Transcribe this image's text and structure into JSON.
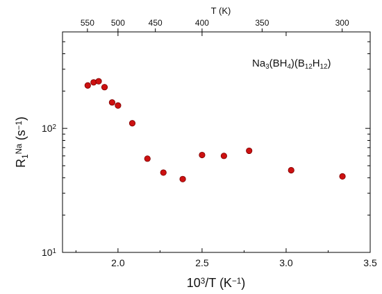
{
  "chart_data": {
    "type": "scatter",
    "title": "",
    "annotation": {
      "parts": [
        {
          "t": "Na",
          "s": ""
        },
        {
          "t": "3",
          "s": "sub"
        },
        {
          "t": "(BH",
          "s": ""
        },
        {
          "t": "4",
          "s": "sub"
        },
        {
          "t": ")(B",
          "s": ""
        },
        {
          "t": "12",
          "s": "sub"
        },
        {
          "t": "H",
          "s": ""
        },
        {
          "t": "12",
          "s": "sub"
        },
        {
          "t": ")",
          "s": ""
        }
      ]
    },
    "xlabel": {
      "parts": [
        {
          "t": "10",
          "s": ""
        },
        {
          "t": "3",
          "s": "sup"
        },
        {
          "t": "/T  (K",
          "s": ""
        },
        {
          "t": "−1",
          "s": "sup"
        },
        {
          "t": ")",
          "s": ""
        }
      ]
    },
    "ylabel": {
      "parts": [
        {
          "t": "R",
          "s": ""
        },
        {
          "t": "1",
          "s": "sub"
        },
        {
          "t": "Na",
          "s": "sup"
        },
        {
          "t": "  (s",
          "s": ""
        },
        {
          "t": "−1",
          "s": "sup"
        },
        {
          "t": ")",
          "s": ""
        }
      ]
    },
    "top_axis_label": "T  (K)",
    "xlim": [
      1.67,
      3.5
    ],
    "ylim": [
      10,
      600
    ],
    "yscale": "log",
    "grid": false,
    "x_ticks": [
      {
        "v": 2.0,
        "label": "2.0"
      },
      {
        "v": 2.5,
        "label": "2.5"
      },
      {
        "v": 3.0,
        "label": "3.0"
      },
      {
        "v": 3.5,
        "label": "3.5"
      }
    ],
    "y_ticks": [
      {
        "v": 10,
        "base": "10",
        "exp": "1"
      },
      {
        "v": 100,
        "base": "10",
        "exp": "2"
      }
    ],
    "top_ticks": [
      {
        "T": 550,
        "label": "550"
      },
      {
        "T": 500,
        "label": "500"
      },
      {
        "T": 450,
        "label": "450"
      },
      {
        "T": 400,
        "label": "400"
      },
      {
        "T": 350,
        "label": "350"
      },
      {
        "T": 300,
        "label": "300"
      }
    ],
    "marker_color": "#cc1111",
    "marker_edge": "#7a0000",
    "points": [
      {
        "x": 1.82,
        "y": 222
      },
      {
        "x": 1.855,
        "y": 235
      },
      {
        "x": 1.885,
        "y": 240
      },
      {
        "x": 1.92,
        "y": 215
      },
      {
        "x": 1.965,
        "y": 162
      },
      {
        "x": 2.0,
        "y": 153
      },
      {
        "x": 2.085,
        "y": 110
      },
      {
        "x": 2.175,
        "y": 57
      },
      {
        "x": 2.27,
        "y": 44
      },
      {
        "x": 2.385,
        "y": 39
      },
      {
        "x": 2.5,
        "y": 61
      },
      {
        "x": 2.63,
        "y": 60
      },
      {
        "x": 2.78,
        "y": 66
      },
      {
        "x": 3.03,
        "y": 46
      },
      {
        "x": 3.335,
        "y": 41
      }
    ]
  }
}
